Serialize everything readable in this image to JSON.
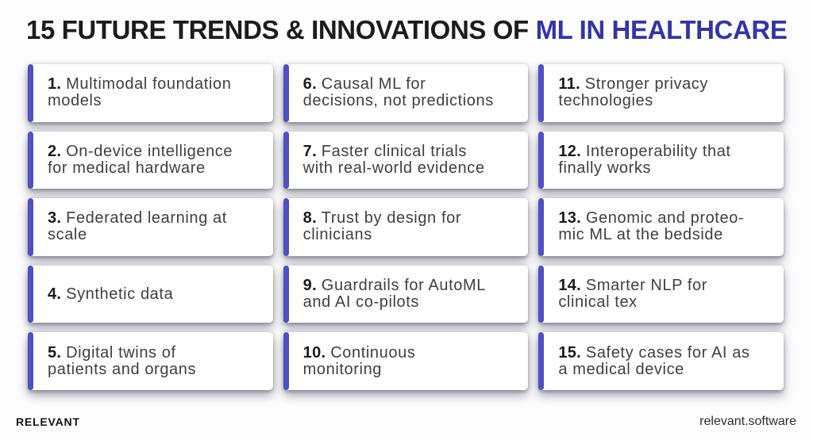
{
  "title": {
    "prefix": "15 FUTURE TRENDS & INNOVATIONS OF ",
    "highlight": "ML IN HEALTHCARE"
  },
  "accent_color": "#4f50c2",
  "highlight_color": "#3535a2",
  "cards": [
    {
      "number": "1.",
      "lines": [
        "Multimodal foundation",
        "models"
      ]
    },
    {
      "number": "2.",
      "lines": [
        "On-device intelligence",
        "for medical hardware"
      ]
    },
    {
      "number": "3.",
      "lines": [
        "Federated learning at",
        "scale"
      ]
    },
    {
      "number": "4.",
      "lines": [
        "Synthetic data"
      ]
    },
    {
      "number": "5.",
      "lines": [
        "Digital twins of",
        "patients and organs"
      ]
    },
    {
      "number": "6.",
      "lines": [
        "Causal ML for",
        "decisions, not predictions"
      ]
    },
    {
      "number": "7.",
      "lines": [
        "Faster clinical trials",
        "with real-world evidence"
      ]
    },
    {
      "number": "8.",
      "lines": [
        "Trust by design for",
        "clinicians"
      ]
    },
    {
      "number": "9.",
      "lines": [
        "Guardrails for AutoML",
        "and AI co-pilots"
      ]
    },
    {
      "number": "10.",
      "lines": [
        "Continuous",
        "monitoring"
      ]
    },
    {
      "number": "11.",
      "lines": [
        "Stronger privacy",
        "technologies"
      ]
    },
    {
      "number": "12.",
      "lines": [
        "Interoperability that",
        "finally works"
      ]
    },
    {
      "number": "13.",
      "lines": [
        "Genomic and proteo-",
        "mic ML at the bedside"
      ]
    },
    {
      "number": "14.",
      "lines": [
        "Smarter NLP for",
        "clinical tex"
      ]
    },
    {
      "number": "15.",
      "lines": [
        "Safety cases for AI as",
        "a medical device"
      ]
    }
  ],
  "footer": {
    "brand": "RELEVANT",
    "site": "relevant.software"
  }
}
